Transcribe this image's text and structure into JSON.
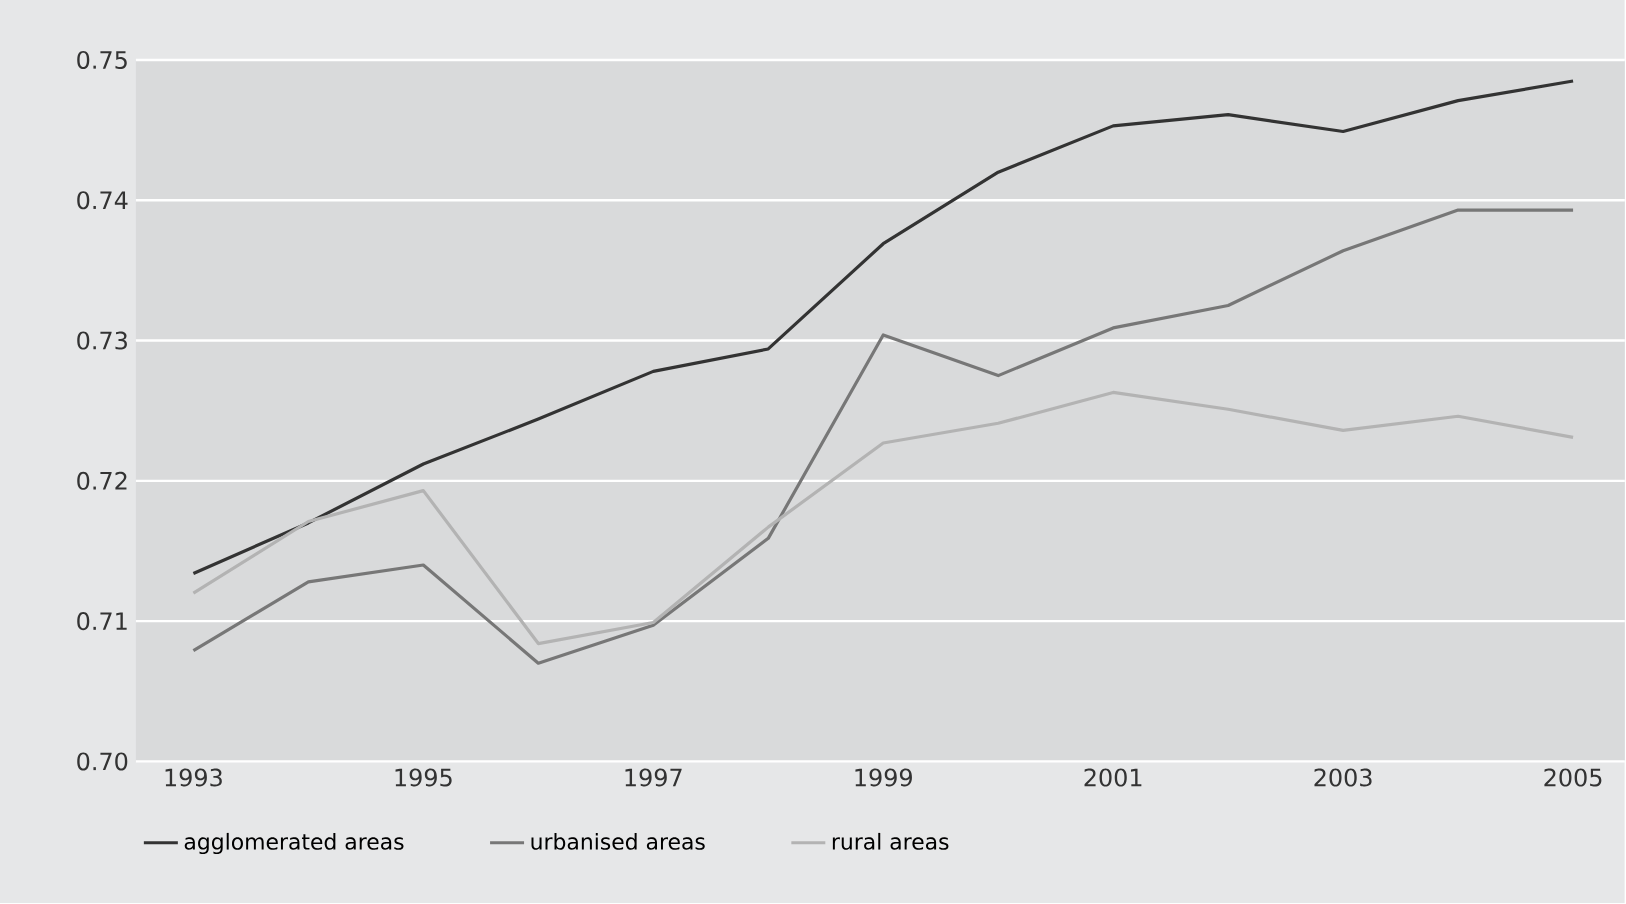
{
  "chart_data": {
    "type": "line",
    "x": [
      1993,
      1994,
      1995,
      1996,
      1997,
      1998,
      1999,
      2000,
      2001,
      2002,
      2003,
      2004,
      2005
    ],
    "xlim": [
      1992.5,
      2005.45
    ],
    "xticks": [
      1993,
      1995,
      1997,
      1999,
      2001,
      2003,
      2005
    ],
    "ylim": [
      0.7,
      0.75
    ],
    "yticks": [
      {
        "value": 0.7,
        "label": "0.70"
      },
      0.71,
      0.72,
      0.73,
      0.74,
      0.75
    ],
    "grid": "y",
    "legend": "bottom",
    "series": [
      {
        "name": "agglomerated areas",
        "color": "#333333",
        "values": [
          0.7134,
          0.717,
          0.7212,
          0.7244,
          0.7278,
          0.7294,
          0.7369,
          0.742,
          0.7453,
          0.7461,
          0.7449,
          0.7471,
          0.7485
        ]
      },
      {
        "name": "urbanised areas",
        "color": "#777777",
        "values": [
          0.7079,
          0.7128,
          0.714,
          0.707,
          0.7097,
          0.7159,
          0.7304,
          0.7275,
          0.7309,
          0.7325,
          0.7364,
          0.7393,
          0.7393
        ]
      },
      {
        "name": "rural areas",
        "color": "#b3b3b3",
        "values": [
          0.712,
          0.7171,
          0.7193,
          0.7084,
          0.7099,
          0.7167,
          0.7227,
          0.7241,
          0.7263,
          0.7251,
          0.7236,
          0.7246,
          0.7231
        ]
      }
    ]
  }
}
